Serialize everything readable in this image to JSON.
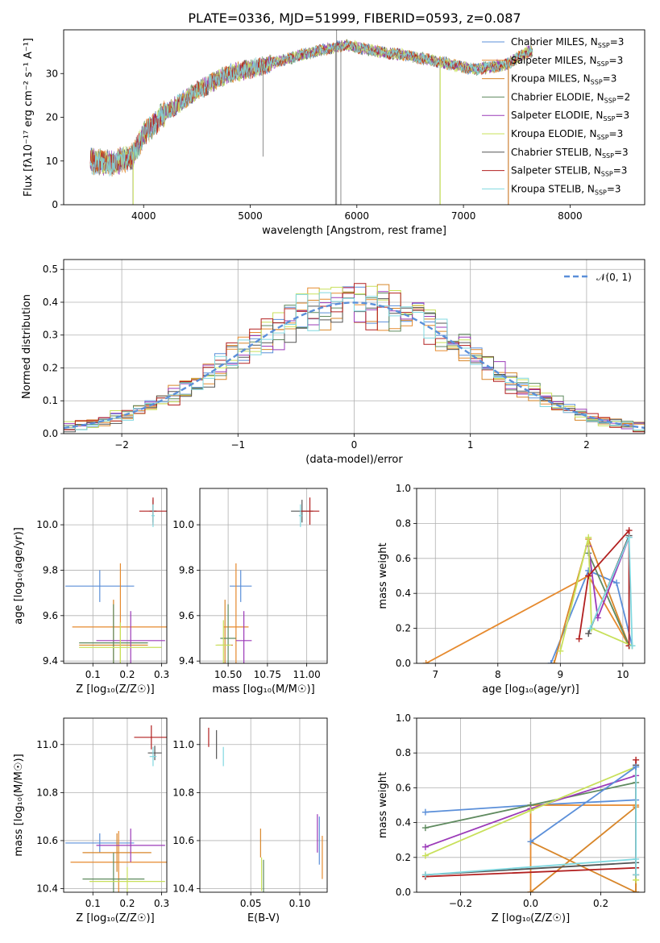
{
  "title": "PLATE=0336, MJD=51999, FIBERID=0593, z=0.087",
  "legend_labels": [
    {
      "base": "Chabrier MILES, N",
      "sub": "SSP",
      "tail": "=3"
    },
    {
      "base": "Salpeter MILES, N",
      "sub": "SSP",
      "tail": "=3"
    },
    {
      "base": "Kroupa MILES, N",
      "sub": "SSP",
      "tail": "=3"
    },
    {
      "base": "Chabrier ELODIE, N",
      "sub": "SSP",
      "tail": "=2"
    },
    {
      "base": "Salpeter ELODIE, N",
      "sub": "SSP",
      "tail": "=3"
    },
    {
      "base": "Kroupa ELODIE, N",
      "sub": "SSP",
      "tail": "=3"
    },
    {
      "base": "Chabrier STELIB, N",
      "sub": "SSP",
      "tail": "=3"
    },
    {
      "base": "Salpeter STELIB, N",
      "sub": "SSP",
      "tail": "=3"
    },
    {
      "base": "Kroupa STELIB, N",
      "sub": "SSP",
      "tail": "=3"
    }
  ],
  "colors": [
    "#5b8fd9",
    "#e68a2e",
    "#d8862a",
    "#5f8a5f",
    "#9b3ab8",
    "#c8e05a",
    "#555555",
    "#b22020",
    "#80d8e0"
  ],
  "chart_data": [
    {
      "type": "line",
      "title": "PLATE=0336, MJD=51999, FIBERID=0593, z=0.087",
      "xlabel": "wavelength [Angstrom, rest frame]",
      "ylabel": "Flux [fλ10⁻¹⁷ erg cm⁻² s⁻¹ A⁻¹]",
      "xlim": [
        3250,
        8700
      ],
      "ylim": [
        0,
        40
      ],
      "xticks": [
        "4000",
        "5000",
        "6000",
        "7000",
        "8000"
      ],
      "yticks": [
        "0",
        "10",
        "20",
        "30"
      ],
      "spectrum_continuum": {
        "wavelength": [
          3500,
          3700,
          3900,
          4000,
          4200,
          4500,
          4800,
          5000,
          5300,
          5600,
          5900,
          6200,
          6500,
          6800,
          7100,
          7400,
          7600
        ],
        "flux": [
          10,
          9.5,
          11,
          16,
          21,
          26,
          30,
          31,
          33,
          35,
          36.5,
          35,
          34,
          32.5,
          31,
          32,
          35
        ]
      },
      "spikes_down": [
        [
          5120,
          11
        ],
        [
          5800,
          0
        ],
        [
          5850,
          0
        ],
        [
          6780,
          0
        ],
        [
          7420,
          0
        ],
        [
          3900,
          0
        ]
      ],
      "grid": false,
      "legend_position": "upper right"
    },
    {
      "type": "line",
      "xlabel": "(data-model)/error",
      "ylabel": "Normed distribution",
      "xlim": [
        -2.5,
        2.5
      ],
      "ylim": [
        0,
        0.53
      ],
      "xticks": [
        "−2",
        "−1",
        "0",
        "1",
        "2"
      ],
      "yticks": [
        "0.0",
        "0.1",
        "0.2",
        "0.3",
        "0.4",
        "0.5"
      ],
      "legend": "𝒩(0, 1)",
      "gaussian": {
        "mean": 0,
        "sigma": 1
      },
      "histogram_bin_width": 0.1,
      "grid": true,
      "legend_position": "upper right"
    },
    {
      "type": "scatter",
      "xlabel": "Z [log₁₀(Z/Z☉)]",
      "ylabel": "age [log₁₀(age/yr)]",
      "xlim": [
        0.015,
        0.315
      ],
      "ylim": [
        9.39,
        10.16
      ],
      "xticks": [
        "0.1",
        "0.2",
        "0.3"
      ],
      "yticks": [
        "9.4",
        "9.6",
        "9.8",
        "10.0"
      ],
      "points": [
        {
          "x": 0.12,
          "y": 9.73,
          "xerr": 0.1,
          "yerr": 0.07
        },
        {
          "x": 0.18,
          "y": 9.55,
          "xerr": 0.14,
          "yerr": 0.28
        },
        {
          "x": 0.16,
          "y": 9.47,
          "xerr": 0.1,
          "yerr": 0.2
        },
        {
          "x": 0.16,
          "y": 9.48,
          "xerr": 0.1,
          "yerr": 0.17
        },
        {
          "x": 0.21,
          "y": 9.49,
          "xerr": 0.1,
          "yerr": 0.13
        },
        {
          "x": 0.18,
          "y": 9.46,
          "xerr": 0.12,
          "yerr": 0.11
        },
        {
          "x": 0.275,
          "y": 10.06,
          "xerr": 0.01,
          "yerr": 0.05
        },
        {
          "x": 0.275,
          "y": 10.06,
          "xerr": 0.04,
          "yerr": 0.06
        },
        {
          "x": 0.275,
          "y": 10.04,
          "xerr": 0.005,
          "yerr": 0.05
        }
      ]
    },
    {
      "type": "scatter",
      "xlabel": "mass [log₁₀(M/M☉)]",
      "xlim": [
        10.32,
        11.13
      ],
      "ylim": [
        9.39,
        10.16
      ],
      "xticks": [
        "10.50",
        "10.75",
        "11.00"
      ],
      "yticks": [
        "9.4",
        "9.6",
        "9.8",
        "10.0"
      ],
      "points": [
        {
          "x": 10.58,
          "y": 9.73,
          "xerr": 0.07,
          "yerr": 0.07
        },
        {
          "x": 10.55,
          "y": 9.55,
          "xerr": 0.08,
          "yerr": 0.28
        },
        {
          "x": 10.48,
          "y": 9.47,
          "xerr": 0.05,
          "yerr": 0.2
        },
        {
          "x": 10.5,
          "y": 9.5,
          "xerr": 0.05,
          "yerr": 0.15
        },
        {
          "x": 10.6,
          "y": 9.49,
          "xerr": 0.05,
          "yerr": 0.13
        },
        {
          "x": 10.47,
          "y": 9.47,
          "xerr": 0.05,
          "yerr": 0.11
        },
        {
          "x": 10.97,
          "y": 10.06,
          "xerr": 0.07,
          "yerr": 0.05
        },
        {
          "x": 11.02,
          "y": 10.06,
          "xerr": 0.06,
          "yerr": 0.06
        },
        {
          "x": 10.96,
          "y": 10.04,
          "xerr": 0.01,
          "yerr": 0.05
        }
      ]
    },
    {
      "type": "line",
      "xlabel": "age [log₁₀(age/yr)]",
      "ylabel": "mass weight",
      "xlim": [
        6.7,
        10.35
      ],
      "ylim": [
        0,
        1
      ],
      "xticks": [
        "7",
        "8",
        "9",
        "10"
      ],
      "yticks": [
        "0.0",
        "0.2",
        "0.4",
        "0.6",
        "0.8",
        "1.0"
      ],
      "series": [
        {
          "x": [
            8.85,
            9.45,
            9.9,
            10.15
          ],
          "y": [
            0.0,
            0.53,
            0.46,
            0.1
          ]
        },
        {
          "x": [
            6.85,
            9.45,
            10.1
          ],
          "y": [
            0.0,
            0.5,
            0.1
          ]
        },
        {
          "x": [
            8.9,
            9.45,
            10.1
          ],
          "y": [
            0.0,
            0.71,
            0.1
          ]
        },
        {
          "x": [
            9.45,
            10.1
          ],
          "y": [
            0.63,
            0.1
          ]
        },
        {
          "x": [
            9.45,
            9.6,
            10.1
          ],
          "y": [
            0.67,
            0.26,
            0.72
          ]
        },
        {
          "x": [
            9.0,
            9.45,
            9.5,
            10.15
          ],
          "y": [
            0.07,
            0.72,
            0.2,
            0.1
          ]
        },
        {
          "x": [
            9.45,
            10.1
          ],
          "y": [
            0.17,
            0.73
          ]
        },
        {
          "x": [
            9.3,
            9.45,
            10.1,
            10.1
          ],
          "y": [
            0.14,
            0.5,
            0.76,
            0.1
          ]
        },
        {
          "x": [
            9.48,
            10.1,
            10.15
          ],
          "y": [
            0.2,
            0.72,
            0.1
          ]
        }
      ]
    },
    {
      "type": "scatter",
      "xlabel": "Z [log₁₀(Z/Z☉)]",
      "ylabel": "mass [log₁₀(M/M☉)]",
      "xlim": [
        0.015,
        0.315
      ],
      "ylim": [
        10.385,
        11.11
      ],
      "xticks": [
        "0.1",
        "0.2",
        "0.3"
      ],
      "yticks": [
        "10.4",
        "10.6",
        "10.8",
        "11.0"
      ],
      "points": [
        {
          "x": 0.12,
          "y": 10.59,
          "xerr": 0.1,
          "yerr": 0.04
        },
        {
          "x": 0.175,
          "y": 10.51,
          "xerr": 0.14,
          "yerr": 0.13
        },
        {
          "x": 0.17,
          "y": 10.55,
          "xerr": 0.1,
          "yerr": 0.08
        },
        {
          "x": 0.16,
          "y": 10.44,
          "xerr": 0.09,
          "yerr": 0.11
        },
        {
          "x": 0.21,
          "y": 10.58,
          "xerr": 0.1,
          "yerr": 0.07
        },
        {
          "x": 0.2,
          "y": 10.43,
          "xerr": 0.11,
          "yerr": 0.06
        },
        {
          "x": 0.28,
          "y": 10.965,
          "xerr": 0.02,
          "yerr": 0.03
        },
        {
          "x": 0.27,
          "y": 11.03,
          "xerr": 0.05,
          "yerr": 0.05
        },
        {
          "x": 0.275,
          "y": 10.95,
          "xerr": 0.01,
          "yerr": 0.04
        }
      ]
    },
    {
      "type": "scatter",
      "xlabel": "E(B-V)",
      "xlim": [
        -0.002,
        0.128
      ],
      "ylim": [
        10.385,
        11.11
      ],
      "xticks": [
        "0.05",
        "0.10"
      ],
      "yticks": [
        "10.4",
        "10.6",
        "10.8",
        "11.0"
      ],
      "points": [
        {
          "x": 0.12,
          "y": 10.6,
          "yerr": 0.1
        },
        {
          "x": 0.123,
          "y": 10.53,
          "yerr": 0.09
        },
        {
          "x": 0.06,
          "y": 10.59,
          "yerr": 0.06
        },
        {
          "x": 0.063,
          "y": 10.44,
          "yerr": 0.08
        },
        {
          "x": 0.118,
          "y": 10.63,
          "yerr": 0.08
        },
        {
          "x": 0.061,
          "y": 10.46,
          "yerr": 0.07
        },
        {
          "x": 0.015,
          "y": 11.0,
          "yerr": 0.06
        },
        {
          "x": 0.007,
          "y": 11.03,
          "yerr": 0.04
        },
        {
          "x": 0.022,
          "y": 10.95,
          "yerr": 0.04
        }
      ]
    },
    {
      "type": "line",
      "xlabel": "Z [log₁₀(Z/Z☉)]",
      "ylabel": "mass weight",
      "xlim": [
        -0.325,
        0.325
      ],
      "ylim": [
        0,
        1
      ],
      "xticks": [
        "−0.2",
        "0.0",
        "0.2"
      ],
      "yticks": [
        "0.0",
        "0.2",
        "0.4",
        "0.6",
        "0.8",
        "1.0"
      ],
      "series": [
        {
          "x": [
            -0.3,
            0.0,
            0.3,
            0.3
          ],
          "y": [
            0.46,
            0.5,
            0.53,
            0.0
          ]
        },
        {
          "x": [
            0.0,
            0.0,
            0.3,
            0.3
          ],
          "y": [
            0.0,
            0.5,
            0.5,
            0.0
          ]
        },
        {
          "x": [
            0.0,
            0.3,
            0.3,
            0.0
          ],
          "y": [
            0.0,
            0.49,
            0.0,
            0.29
          ]
        },
        {
          "x": [
            -0.3,
            0.0,
            0.3
          ],
          "y": [
            0.37,
            0.5,
            0.63
          ]
        },
        {
          "x": [
            -0.3,
            0.0,
            0.3
          ],
          "y": [
            0.26,
            0.48,
            0.67
          ]
        },
        {
          "x": [
            -0.3,
            0.0,
            0.3,
            0.3
          ],
          "y": [
            0.21,
            0.47,
            0.72,
            0.07
          ]
        },
        {
          "x": [
            -0.3,
            0.3,
            0.3
          ],
          "y": [
            0.1,
            0.17,
            0.73
          ]
        },
        {
          "x": [
            -0.3,
            0.3,
            0.3,
            0.3
          ],
          "y": [
            0.09,
            0.14,
            0.76,
            0.1
          ]
        },
        {
          "x": [
            -0.3,
            0.3,
            0.3,
            0.3
          ],
          "y": [
            0.1,
            0.19,
            0.72,
            0.1
          ]
        },
        {
          "x": [
            0.0,
            0.3
          ],
          "y": [
            0.29,
            0.72
          ]
        }
      ]
    }
  ]
}
